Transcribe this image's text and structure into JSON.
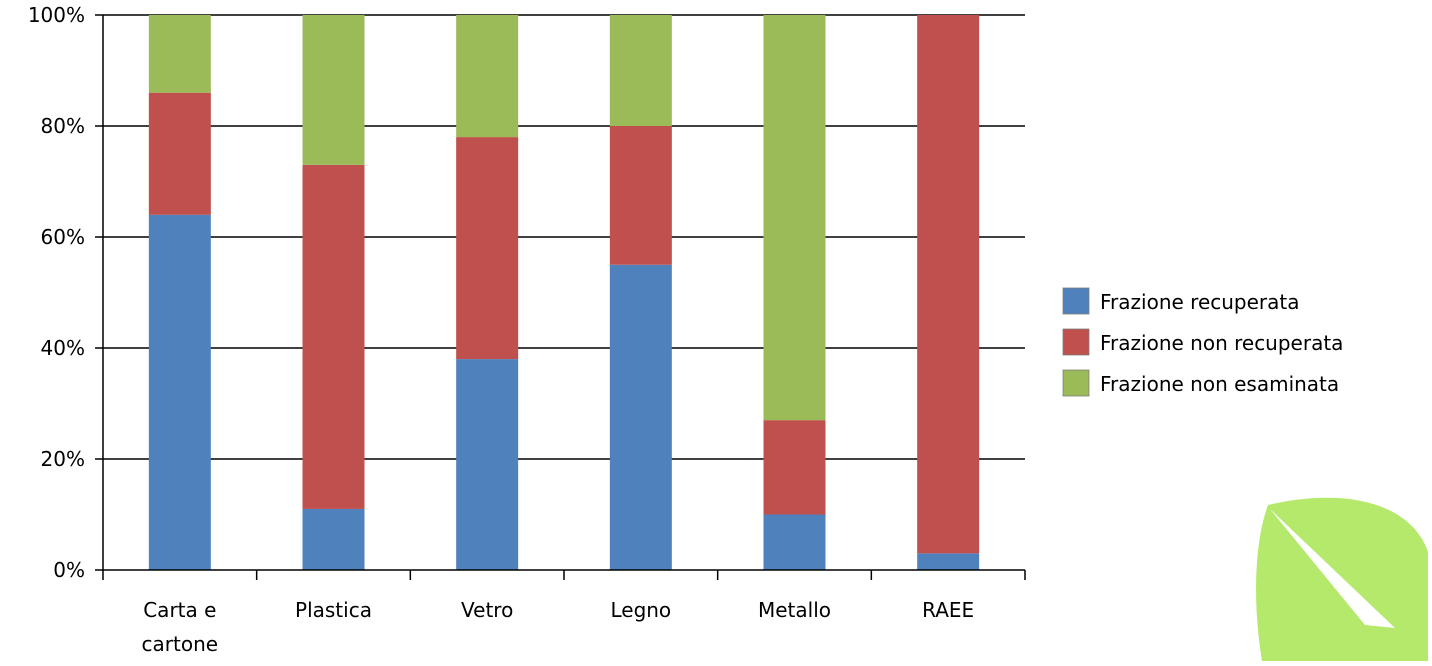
{
  "chart_data": {
    "type": "bar",
    "stacked": true,
    "categories": [
      [
        "Carta e",
        "cartone"
      ],
      [
        "Plastica"
      ],
      [
        "Vetro"
      ],
      [
        "Legno"
      ],
      [
        "Metallo"
      ],
      [
        "RAEE"
      ]
    ],
    "series": [
      {
        "name": "Frazione recuperata",
        "color": "#4f81bd",
        "values": [
          64,
          11,
          38,
          55,
          10,
          3
        ]
      },
      {
        "name": "Frazione non recuperata",
        "color": "#c0504d",
        "values": [
          22,
          62,
          40,
          25,
          17,
          97
        ]
      },
      {
        "name": "Frazione non esaminata",
        "color": "#9bbb59",
        "values": [
          14,
          27,
          22,
          20,
          73,
          0
        ]
      }
    ],
    "y_ticks": [
      "0%",
      "20%",
      "40%",
      "60%",
      "80%",
      "100%"
    ],
    "ylim": [
      0,
      100
    ],
    "grid": true,
    "legend_position": "right"
  },
  "decoration": {
    "leaf_icon_color": "#b5e96b"
  }
}
